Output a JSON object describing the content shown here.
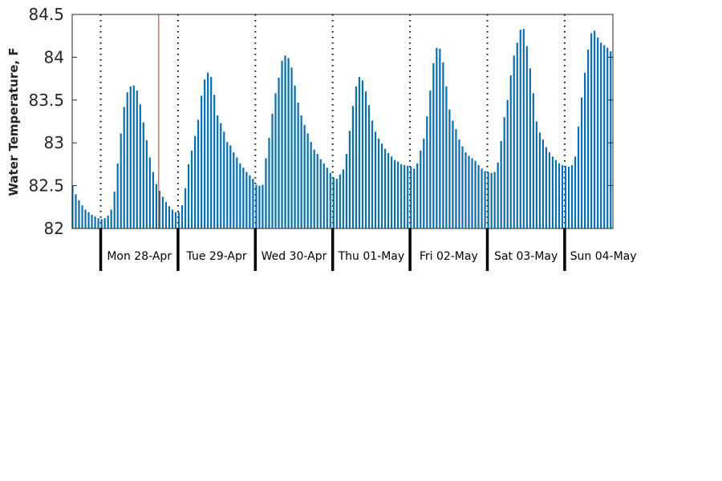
{
  "chart_data": {
    "type": "bar",
    "ylabel": "Water Temperature, F",
    "ylim": [
      82,
      84.5
    ],
    "yticks": [
      82,
      82.5,
      83,
      83.5,
      84,
      84.5
    ],
    "ytick_labels": [
      "82",
      "82.5",
      "83",
      "83.5",
      "84",
      "84.5"
    ],
    "day_labels": [
      "Mon 28-Apr",
      "Tue 29-Apr",
      "Wed 30-Apr",
      "Thu 01-May",
      "Fri 02-May",
      "Sat 03-May",
      "Sun 04-May"
    ],
    "samples_per_day": 24,
    "hours_before_first_day": 9,
    "current_time_hour_offset": 18,
    "grid": "vertical dotted at midnight",
    "colors": {
      "bar": "#0a6fad",
      "current_time": "#e02020",
      "axis": "#262626",
      "tick": "#000000"
    },
    "values": [
      82.5,
      82.4,
      82.33,
      82.27,
      82.22,
      82.19,
      82.16,
      82.14,
      82.12,
      82.11,
      82.12,
      82.15,
      82.22,
      82.43,
      82.76,
      83.11,
      83.42,
      83.59,
      83.66,
      83.67,
      83.61,
      83.45,
      83.24,
      83.03,
      82.83,
      82.66,
      82.52,
      82.44,
      82.37,
      82.31,
      82.26,
      82.22,
      82.19,
      82.19,
      82.27,
      82.47,
      82.75,
      82.91,
      83.08,
      83.27,
      83.55,
      83.74,
      83.82,
      83.77,
      83.56,
      83.32,
      83.23,
      83.13,
      83.01,
      82.97,
      82.89,
      82.83,
      82.76,
      82.71,
      82.66,
      82.62,
      82.58,
      82.51,
      82.5,
      82.51,
      82.82,
      83.06,
      83.34,
      83.58,
      83.76,
      83.96,
      84.02,
      83.99,
      83.88,
      83.67,
      83.47,
      83.32,
      83.21,
      83.11,
      83.01,
      82.92,
      82.87,
      82.81,
      82.76,
      82.71,
      82.65,
      82.6,
      82.58,
      82.63,
      82.69,
      82.87,
      83.14,
      83.43,
      83.66,
      83.77,
      83.73,
      83.6,
      83.44,
      83.26,
      83.13,
      83.05,
      82.99,
      82.93,
      82.88,
      82.84,
      82.8,
      82.78,
      82.75,
      82.74,
      82.73,
      82.72,
      82.7,
      82.76,
      82.91,
      83.05,
      83.31,
      83.61,
      83.93,
      84.11,
      84.1,
      83.94,
      83.66,
      83.39,
      83.26,
      83.16,
      83.04,
      82.96,
      82.89,
      82.85,
      82.82,
      82.79,
      82.74,
      82.7,
      82.67,
      82.66,
      82.65,
      82.66,
      82.77,
      83.02,
      83.3,
      83.5,
      83.79,
      84.02,
      84.17,
      84.32,
      84.33,
      84.13,
      83.87,
      83.58,
      83.25,
      83.12,
      83.04,
      82.95,
      82.89,
      82.84,
      82.8,
      82.76,
      82.74,
      82.73,
      82.72,
      82.74,
      82.84,
      83.19,
      83.53,
      83.82,
      84.09,
      84.28,
      84.31,
      84.23,
      84.17,
      84.14,
      84.11,
      84.07,
      84.05,
      83.86
    ]
  }
}
